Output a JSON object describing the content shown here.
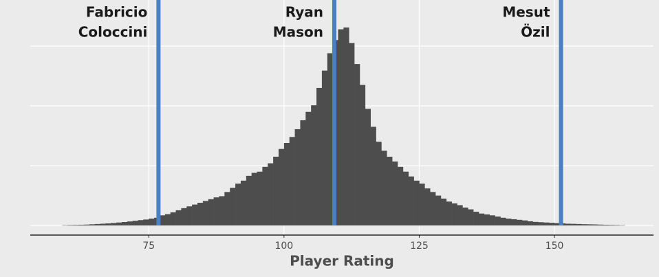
{
  "chart_data": {
    "type": "histogram",
    "xlabel": "Player Rating",
    "bins": [
      59,
      60,
      61,
      62,
      63,
      64,
      65,
      66,
      67,
      68,
      69,
      70,
      71,
      72,
      73,
      74,
      75,
      76,
      77,
      78,
      79,
      80,
      81,
      82,
      83,
      84,
      85,
      86,
      87,
      88,
      89,
      90,
      91,
      92,
      93,
      94,
      95,
      96,
      97,
      98,
      99,
      100,
      101,
      102,
      103,
      104,
      105,
      106,
      107,
      108,
      109,
      110,
      111,
      112,
      113,
      114,
      115,
      116,
      117,
      118,
      119,
      120,
      121,
      122,
      123,
      124,
      125,
      126,
      127,
      128,
      129,
      130,
      131,
      132,
      133,
      134,
      135,
      136,
      137,
      138,
      139,
      140,
      141,
      142,
      143,
      144,
      145,
      146,
      147,
      148,
      149,
      150,
      151,
      152,
      153,
      154,
      155,
      156,
      157,
      158,
      159,
      160,
      161,
      162,
      163
    ],
    "values": [
      5,
      8,
      10,
      12,
      15,
      20,
      25,
      30,
      35,
      42,
      50,
      58,
      68,
      78,
      90,
      100,
      115,
      130,
      170,
      190,
      220,
      255,
      290,
      320,
      350,
      380,
      410,
      440,
      470,
      490,
      560,
      630,
      700,
      750,
      830,
      880,
      900,
      980,
      1040,
      1150,
      1280,
      1380,
      1480,
      1610,
      1760,
      1900,
      2010,
      2300,
      2590,
      2880,
      3100,
      3280,
      3310,
      3050,
      2700,
      2350,
      1950,
      1650,
      1400,
      1250,
      1150,
      1070,
      980,
      900,
      820,
      750,
      700,
      620,
      560,
      500,
      450,
      400,
      370,
      340,
      300,
      270,
      230,
      200,
      185,
      170,
      150,
      130,
      115,
      105,
      95,
      85,
      70,
      60,
      55,
      50,
      45,
      40,
      35,
      30,
      28,
      25,
      22,
      20,
      18,
      15,
      12,
      10,
      8,
      5
    ],
    "color": "#4d4d4d",
    "xlim": [
      53.1,
      168.3
    ],
    "xticks": [
      75,
      100,
      125,
      150
    ],
    "ylim": [
      -160,
      3770
    ],
    "yticks": [
      0,
      1000,
      2000,
      3000
    ],
    "show_ytick_labels": false,
    "grid": true,
    "annotations": [
      {
        "lines": [
          "Fabricio",
          "Coloccini"
        ],
        "x": 76.8,
        "color": "#4a7fc1"
      },
      {
        "lines": [
          "Ryan",
          "Mason"
        ],
        "x": 109.3,
        "color": "#4a7fc1"
      },
      {
        "lines": [
          "Mesut",
          "Özil"
        ],
        "x": 151.2,
        "color": "#4a7fc1"
      }
    ]
  }
}
